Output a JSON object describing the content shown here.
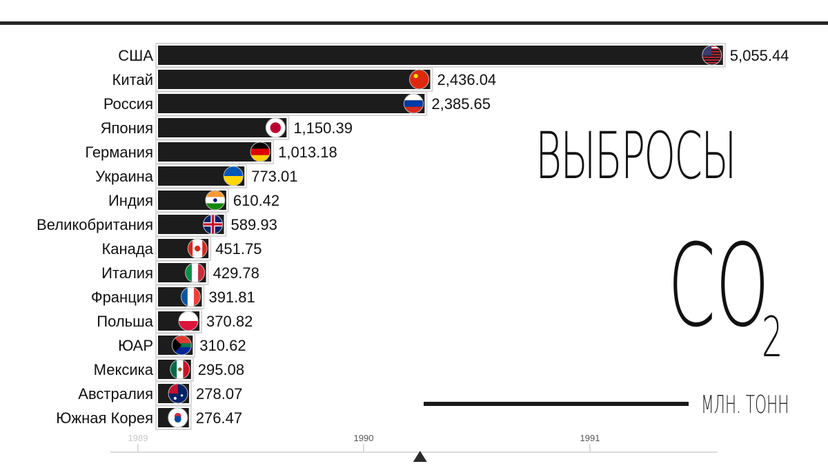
{
  "title": {
    "line1": "ВЫБРОСЫ",
    "line2": "CO",
    "subscript": "2",
    "unit": "МЛН. ТОНН"
  },
  "colors": {
    "bar": "#1c1c1c",
    "bar_outline": "#d8d8d8",
    "text": "#111111",
    "timeline": "#cfcfcf"
  },
  "chart_data": {
    "type": "bar",
    "orientation": "horizontal",
    "categories": [
      "США",
      "Китай",
      "Россия",
      "Япония",
      "Германия",
      "Украина",
      "Индия",
      "Великобритания",
      "Канада",
      "Италия",
      "Франция",
      "Польша",
      "ЮАР",
      "Мексика",
      "Австралия",
      "Южная Корея"
    ],
    "values": [
      5055.44,
      2436.04,
      2385.65,
      1150.39,
      1013.18,
      773.01,
      610.42,
      589.93,
      451.75,
      429.78,
      391.81,
      370.82,
      310.62,
      295.08,
      278.07,
      276.47
    ],
    "value_labels": [
      "5,055.44",
      "2,436.04",
      "2,385.65",
      "1,150.39",
      "1,013.18",
      "773.01",
      "610.42",
      "589.93",
      "451.75",
      "429.78",
      "391.81",
      "370.82",
      "310.62",
      "295.08",
      "278.07",
      "276.47"
    ],
    "flag_icons": [
      "flag-usa-icon",
      "flag-china-icon",
      "flag-russia-icon",
      "flag-japan-icon",
      "flag-germany-icon",
      "flag-ukraine-icon",
      "flag-india-icon",
      "flag-uk-icon",
      "flag-canada-icon",
      "flag-italy-icon",
      "flag-france-icon",
      "flag-poland-icon",
      "flag-south-africa-icon",
      "flag-mexico-icon",
      "flag-australia-icon",
      "flag-south-korea-icon"
    ],
    "xlim": [
      0,
      5100
    ],
    "timeline": {
      "ticks": [
        "1989",
        "1990",
        "1991"
      ],
      "current_year": 1990.25
    }
  }
}
